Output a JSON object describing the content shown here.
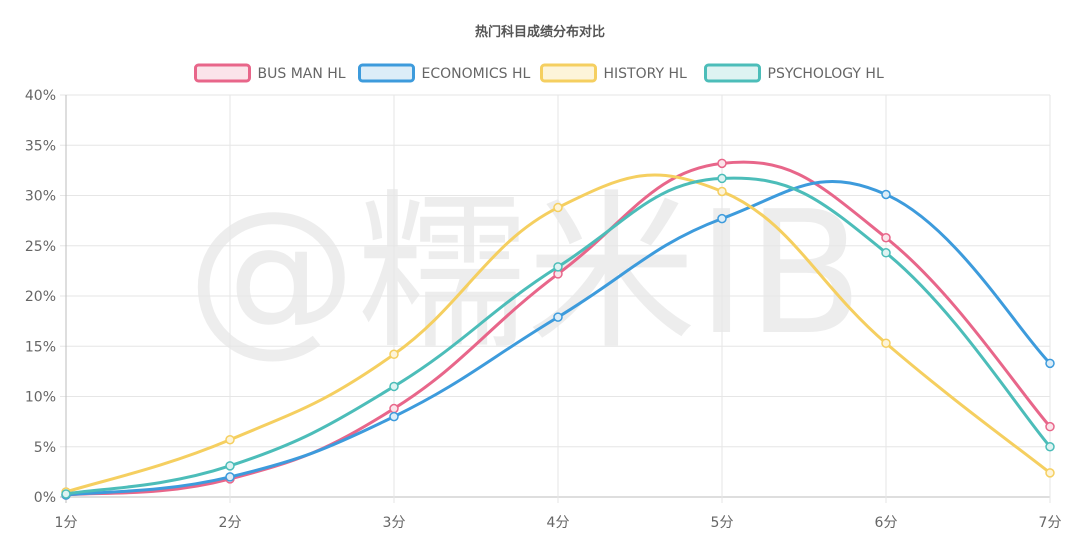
{
  "watermark": "@糯米IB",
  "chart_data": {
    "type": "line",
    "title": "热门科目成绩分布对比",
    "xlabel": "",
    "ylabel": "",
    "categories": [
      "1分",
      "2分",
      "3分",
      "4分",
      "5分",
      "6分",
      "7分"
    ],
    "ylim": [
      0,
      40
    ],
    "yticks": [
      0,
      5,
      10,
      15,
      20,
      25,
      30,
      35,
      40
    ],
    "ytick_labels": [
      "0%",
      "5%",
      "10%",
      "15%",
      "20%",
      "25%",
      "30%",
      "35%",
      "40%"
    ],
    "grid": true,
    "smooth": true,
    "legend_position": "top",
    "series": [
      {
        "name": "BUS MAN HL",
        "color": "#e8668a",
        "fill": "#fbe4ea",
        "values": [
          0.2,
          1.8,
          8.8,
          22.2,
          33.2,
          25.8,
          7.0
        ]
      },
      {
        "name": "ECONOMICS HL",
        "color": "#3d9bdc",
        "fill": "#dcedf8",
        "values": [
          0.2,
          2.0,
          8.0,
          17.9,
          27.7,
          30.1,
          13.3
        ]
      },
      {
        "name": "HISTORY HL",
        "color": "#f5cf60",
        "fill": "#fdf4d9",
        "values": [
          0.5,
          5.7,
          14.2,
          28.8,
          30.4,
          15.3,
          2.4
        ]
      },
      {
        "name": "PSYCHOLOGY HL",
        "color": "#4cbdb9",
        "fill": "#def3f2",
        "values": [
          0.3,
          3.1,
          11.0,
          22.9,
          31.7,
          24.3,
          5.0
        ]
      }
    ]
  }
}
